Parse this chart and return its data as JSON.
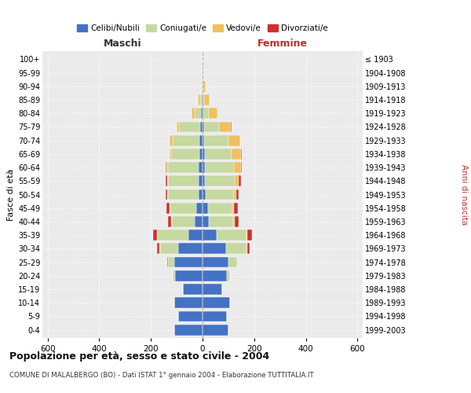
{
  "age_groups": [
    "0-4",
    "5-9",
    "10-14",
    "15-19",
    "20-24",
    "25-29",
    "30-34",
    "35-39",
    "40-44",
    "45-49",
    "50-54",
    "55-59",
    "60-64",
    "65-69",
    "70-74",
    "75-79",
    "80-84",
    "85-89",
    "90-94",
    "95-99",
    "100+"
  ],
  "birth_years": [
    "1999-2003",
    "1994-1998",
    "1989-1993",
    "1984-1988",
    "1979-1983",
    "1974-1978",
    "1969-1973",
    "1964-1968",
    "1959-1963",
    "1954-1958",
    "1949-1953",
    "1944-1948",
    "1939-1943",
    "1934-1938",
    "1929-1933",
    "1924-1928",
    "1919-1923",
    "1914-1918",
    "1909-1913",
    "1904-1908",
    "≤ 1903"
  ],
  "maschi": {
    "celibi": [
      110,
      95,
      110,
      75,
      105,
      110,
      95,
      55,
      30,
      25,
      15,
      15,
      15,
      12,
      12,
      10,
      5,
      2,
      1,
      0,
      0
    ],
    "coniugati": [
      0,
      0,
      0,
      0,
      10,
      25,
      70,
      120,
      90,
      100,
      120,
      120,
      120,
      110,
      105,
      80,
      25,
      8,
      3,
      1,
      0
    ],
    "vedovi": [
      0,
      0,
      0,
      0,
      0,
      0,
      2,
      2,
      2,
      2,
      2,
      2,
      5,
      5,
      10,
      10,
      12,
      8,
      2,
      0,
      0
    ],
    "divorziati": [
      0,
      0,
      0,
      0,
      1,
      2,
      8,
      15,
      12,
      12,
      5,
      5,
      3,
      2,
      0,
      0,
      0,
      0,
      0,
      0,
      0
    ]
  },
  "femmine": {
    "nubili": [
      100,
      95,
      105,
      75,
      95,
      100,
      90,
      55,
      25,
      20,
      12,
      10,
      8,
      8,
      5,
      5,
      3,
      2,
      1,
      0,
      0
    ],
    "coniugate": [
      0,
      0,
      0,
      0,
      10,
      35,
      80,
      115,
      95,
      95,
      110,
      115,
      115,
      105,
      95,
      60,
      20,
      5,
      3,
      1,
      0
    ],
    "vedove": [
      0,
      0,
      0,
      0,
      0,
      1,
      2,
      3,
      5,
      8,
      10,
      15,
      25,
      35,
      45,
      45,
      35,
      20,
      8,
      2,
      1
    ],
    "divorziate": [
      0,
      0,
      0,
      0,
      1,
      2,
      10,
      18,
      15,
      15,
      8,
      8,
      5,
      3,
      2,
      2,
      0,
      0,
      0,
      0,
      0
    ]
  },
  "colors": {
    "celibi_nubili": "#4472c4",
    "coniugati": "#c5d9a0",
    "vedovi": "#f0c060",
    "divorziati": "#d03030"
  },
  "xlim": 620,
  "title": "Popolazione per età, sesso e stato civile - 2004",
  "subtitle": "COMUNE DI MALALBERGO (BO) - Dati ISTAT 1° gennaio 2004 - Elaborazione TUTTITALIA.IT",
  "ylabel_left": "Fasce di età",
  "ylabel_right": "Anni di nascita",
  "xlabel_left": "Maschi",
  "xlabel_right": "Femmine",
  "bg_color": "#ebebeb"
}
